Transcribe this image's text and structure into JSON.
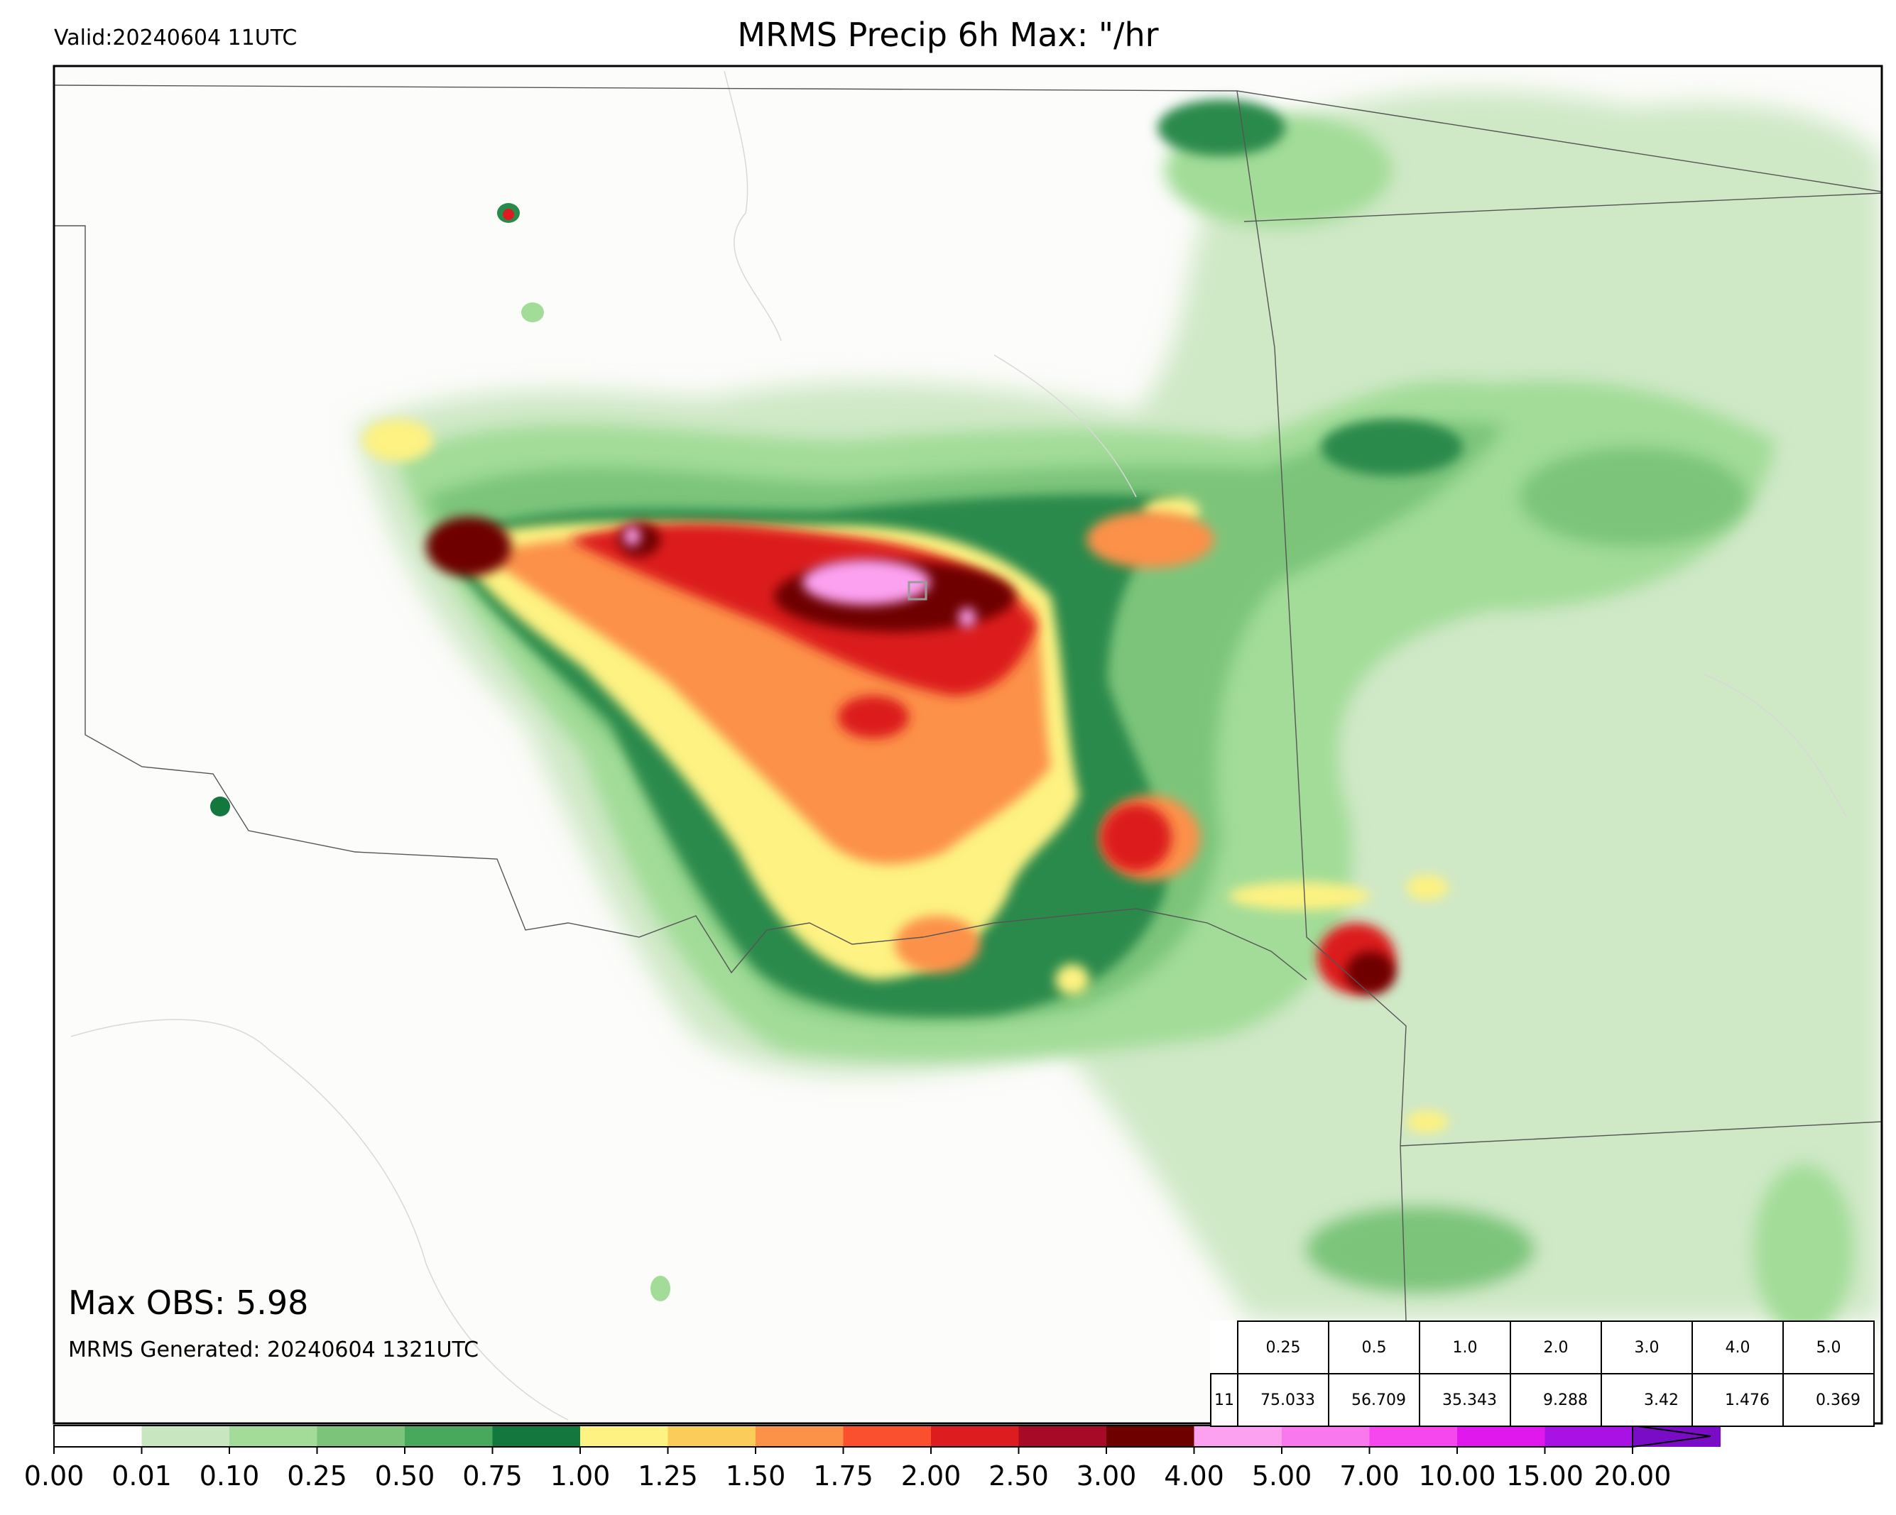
{
  "header": {
    "valid": "Valid:20240604 11UTC",
    "title": "MRMS Precip 6h Max: \"/hr"
  },
  "annotations": {
    "max_obs": "Max OBS: 5.98",
    "generated": "MRMS Generated: 20240604 1321UTC"
  },
  "stats_table": {
    "row_label": "11",
    "thresholds": [
      "0.25",
      "0.5",
      "1.0",
      "2.0",
      "3.0",
      "4.0",
      "5.0"
    ],
    "values": [
      "75.033",
      "56.709",
      "35.343",
      "9.288",
      "3.42",
      "1.476",
      "0.369"
    ]
  },
  "colorbar": {
    "labels": [
      "0.00",
      "0.01",
      "0.10",
      "0.25",
      "0.50",
      "0.75",
      "1.00",
      "1.25",
      "1.50",
      "1.75",
      "2.00",
      "2.50",
      "3.00",
      "4.00",
      "5.00",
      "7.00",
      "10.00",
      "15.00",
      "20.00"
    ],
    "colors": [
      "#ffffff",
      "#c8e6c0",
      "#a2dc98",
      "#7cc47a",
      "#48a85c",
      "#13783e",
      "#fdf282",
      "#fccc5a",
      "#fc9148",
      "#fa502e",
      "#dc1c1e",
      "#a60a26",
      "#6e0000",
      "#fca0f0",
      "#fa78ee",
      "#f646ee",
      "#e018ee",
      "#a812e4",
      "#7a0cc8"
    ]
  },
  "map": {
    "features": [
      "state-boundaries",
      "county-lines",
      "precipitation-field"
    ],
    "peak_marker": "hollow-square"
  }
}
